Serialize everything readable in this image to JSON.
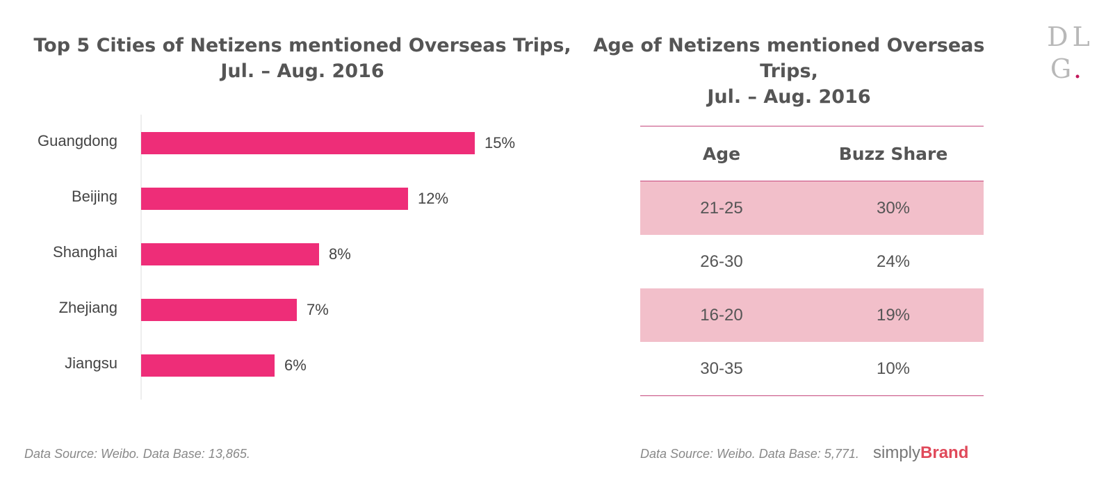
{
  "left_title": {
    "line1": "Top 5 Cities of Netizens mentioned Overseas Trips,",
    "line2": "Jul. – Aug. 2016"
  },
  "right_title": {
    "line1": "Age of Netizens mentioned Overseas Trips,",
    "line2": "Jul. – Aug. 2016"
  },
  "chart_data": [
    {
      "type": "bar",
      "orientation": "horizontal",
      "title": "Top 5 Cities of Netizens mentioned Overseas Trips, Jul. – Aug. 2016",
      "categories": [
        "Guangdong",
        "Beijing",
        "Shanghai",
        "Zhejiang",
        "Jiangsu"
      ],
      "values": [
        15,
        12,
        8,
        7,
        6
      ],
      "value_labels": [
        "15%",
        "12%",
        "8%",
        "7%",
        "6%"
      ],
      "xlim": [
        0,
        17
      ],
      "grid": false,
      "bar_color": "#ee2d78"
    },
    {
      "type": "table",
      "title": "Age of Netizens mentioned Overseas Trips, Jul. – Aug. 2016",
      "headers": [
        "Age",
        "Buzz Share"
      ],
      "rows": [
        {
          "age": "21-25",
          "share": "30%"
        },
        {
          "age": "26-30",
          "share": "24%"
        },
        {
          "age": "16-20",
          "share": "19%"
        },
        {
          "age": "30-35",
          "share": "10%"
        }
      ],
      "shaded_row_color": "#f2bfca",
      "rule_color": "#c5477c"
    }
  ],
  "footnotes": {
    "left": "Data Source: Weibo. Data Base: 13,865.",
    "right": "Data Source: Weibo. Data Base: 5,771."
  },
  "brand": {
    "simply": "simply",
    "name": "Brand"
  },
  "logo": {
    "line1": "DL",
    "line2": "G",
    "dot": "."
  }
}
